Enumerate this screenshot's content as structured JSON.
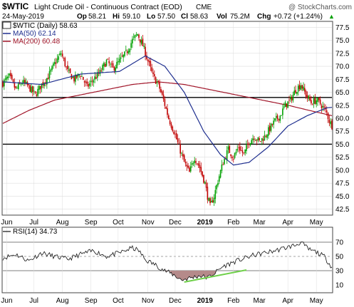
{
  "header": {
    "symbol": "$WTIC",
    "description": "Light Crude Oil - Continuous Contract (EOD)",
    "exchange": "CME",
    "watermark": "@ StockCharts.com",
    "date": "24-May-2019",
    "op_label": "Op",
    "op": "58.21",
    "hi_label": "Hi",
    "hi": "59.10",
    "lo_label": "Lo",
    "lo": "57.50",
    "cl_label": "Cl",
    "cl": "58.63",
    "vol_label": "Vol",
    "vol": "75.2M",
    "chg_label": "Chg",
    "chg": "+0.72 (+1.24%)",
    "chg_arrow": "▲"
  },
  "legend": {
    "main": "$WTIC (Daily) 58.63",
    "ma50": "MA(50) 62.14",
    "ma200": "MA(200) 60.48",
    "rsi": "RSI(14) 34.73"
  },
  "colors": {
    "candle_up": "#00a000",
    "candle_down": "#c00000",
    "ma50": "#1f2f8f",
    "ma200": "#a01428",
    "rsi_line": "#111111",
    "rsi_fill": "#b58a8a",
    "trend": "#6fd04a",
    "hline": "#000000",
    "grid": "#dddddd"
  },
  "chart_data": [
    {
      "type": "line",
      "subtype": "candlestick-with-moving-averages",
      "ylim": [
        41.5,
        78.5
      ],
      "yticks": [
        "42.5",
        "45.0",
        "47.5",
        "50.0",
        "52.5",
        "55.0",
        "57.5",
        "60.0",
        "62.5",
        "65.0",
        "67.5",
        "70.0",
        "72.5",
        "75.0",
        "77.5"
      ],
      "xticks": [
        "Jun",
        "Jul",
        "Aug",
        "Sep",
        "Oct",
        "Nov",
        "Dec",
        "2019",
        "Feb",
        "Mar",
        "Apr",
        "May"
      ],
      "horizontal_lines": [
        64.0,
        55.0
      ],
      "price_anchors": [
        [
          0,
          66.8
        ],
        [
          5,
          68.0
        ],
        [
          10,
          65.5
        ],
        [
          15,
          67.0
        ],
        [
          20,
          66.0
        ],
        [
          25,
          64.5
        ],
        [
          30,
          66.5
        ],
        [
          35,
          68.0
        ],
        [
          40,
          70.5
        ],
        [
          45,
          72.5
        ],
        [
          50,
          69.0
        ],
        [
          55,
          67.5
        ],
        [
          60,
          68.5
        ],
        [
          65,
          66.0
        ],
        [
          70,
          67.5
        ],
        [
          75,
          68.8
        ],
        [
          80,
          71.0
        ],
        [
          85,
          69.5
        ],
        [
          90,
          71.0
        ],
        [
          95,
          72.5
        ],
        [
          100,
          75.0
        ],
        [
          104,
          76.2
        ],
        [
          108,
          74.0
        ],
        [
          112,
          71.0
        ],
        [
          116,
          68.0
        ],
        [
          120,
          66.5
        ],
        [
          124,
          63.5
        ],
        [
          128,
          60.0
        ],
        [
          132,
          57.5
        ],
        [
          136,
          54.5
        ],
        [
          140,
          51.5
        ],
        [
          144,
          49.5
        ],
        [
          148,
          52.5
        ],
        [
          152,
          50.5
        ],
        [
          156,
          47.5
        ],
        [
          158,
          45.0
        ],
        [
          160,
          43.0
        ],
        [
          163,
          45.0
        ],
        [
          166,
          48.0
        ],
        [
          170,
          51.5
        ],
        [
          174,
          54.0
        ],
        [
          178,
          52.5
        ],
        [
          182,
          54.5
        ],
        [
          186,
          53.0
        ],
        [
          190,
          55.5
        ],
        [
          194,
          56.5
        ],
        [
          198,
          55.5
        ],
        [
          202,
          56.5
        ],
        [
          206,
          58.0
        ],
        [
          210,
          59.5
        ],
        [
          214,
          60.5
        ],
        [
          218,
          62.5
        ],
        [
          222,
          63.5
        ],
        [
          226,
          65.5
        ],
        [
          230,
          66.5
        ],
        [
          234,
          64.5
        ],
        [
          238,
          63.0
        ],
        [
          242,
          63.5
        ],
        [
          246,
          62.5
        ],
        [
          250,
          61.0
        ],
        [
          252,
          59.5
        ],
        [
          254,
          58.6
        ]
      ],
      "series": [
        {
          "name": "MA(50) 62.14",
          "anchors": [
            [
              0,
              67.0
            ],
            [
              30,
              66.5
            ],
            [
              60,
              68.5
            ],
            [
              90,
              69.0
            ],
            [
              110,
              72.0
            ],
            [
              125,
              70.0
            ],
            [
              140,
              65.0
            ],
            [
              155,
              57.5
            ],
            [
              168,
              53.0
            ],
            [
              178,
              51.0
            ],
            [
              190,
              51.5
            ],
            [
              205,
              54.5
            ],
            [
              220,
              58.5
            ],
            [
              235,
              60.5
            ],
            [
              250,
              62.0
            ],
            [
              254,
              62.1
            ]
          ]
        },
        {
          "name": "MA(200) 60.48",
          "anchors": [
            [
              0,
              59.0
            ],
            [
              20,
              61.5
            ],
            [
              40,
              63.5
            ],
            [
              60,
              64.5
            ],
            [
              80,
              65.5
            ],
            [
              100,
              66.5
            ],
            [
              120,
              67.0
            ],
            [
              140,
              66.5
            ],
            [
              160,
              65.5
            ],
            [
              180,
              64.5
            ],
            [
              200,
              63.5
            ],
            [
              220,
              62.5
            ],
            [
              240,
              61.3
            ],
            [
              254,
              60.5
            ]
          ]
        }
      ]
    },
    {
      "type": "line",
      "title": "RSI(14) 34.73",
      "ylim": [
        0,
        90
      ],
      "yticks": [
        "10",
        "30",
        "50",
        "70"
      ],
      "xticks": [
        "Jun",
        "Jul",
        "Aug",
        "Sep",
        "Oct",
        "Nov",
        "Dec",
        "2019",
        "Feb",
        "Mar",
        "Apr",
        "May"
      ],
      "reference_levels": [
        30,
        50,
        70
      ],
      "anchors": [
        [
          0,
          48
        ],
        [
          10,
          53
        ],
        [
          20,
          44
        ],
        [
          30,
          55
        ],
        [
          40,
          50
        ],
        [
          50,
          46
        ],
        [
          60,
          53
        ],
        [
          70,
          58
        ],
        [
          80,
          50
        ],
        [
          90,
          55
        ],
        [
          100,
          62
        ],
        [
          105,
          58
        ],
        [
          110,
          45
        ],
        [
          118,
          38
        ],
        [
          125,
          30
        ],
        [
          132,
          24
        ],
        [
          138,
          17
        ],
        [
          145,
          20
        ],
        [
          152,
          23
        ],
        [
          158,
          20
        ],
        [
          163,
          26
        ],
        [
          170,
          36
        ],
        [
          178,
          42
        ],
        [
          186,
          47
        ],
        [
          194,
          52
        ],
        [
          202,
          55
        ],
        [
          210,
          58
        ],
        [
          218,
          62
        ],
        [
          226,
          66
        ],
        [
          230,
          70
        ],
        [
          236,
          60
        ],
        [
          242,
          56
        ],
        [
          248,
          50
        ],
        [
          252,
          40
        ],
        [
          254,
          35
        ]
      ],
      "trendline": [
        [
          140,
          14
        ],
        [
          188,
          31
        ]
      ]
    }
  ]
}
